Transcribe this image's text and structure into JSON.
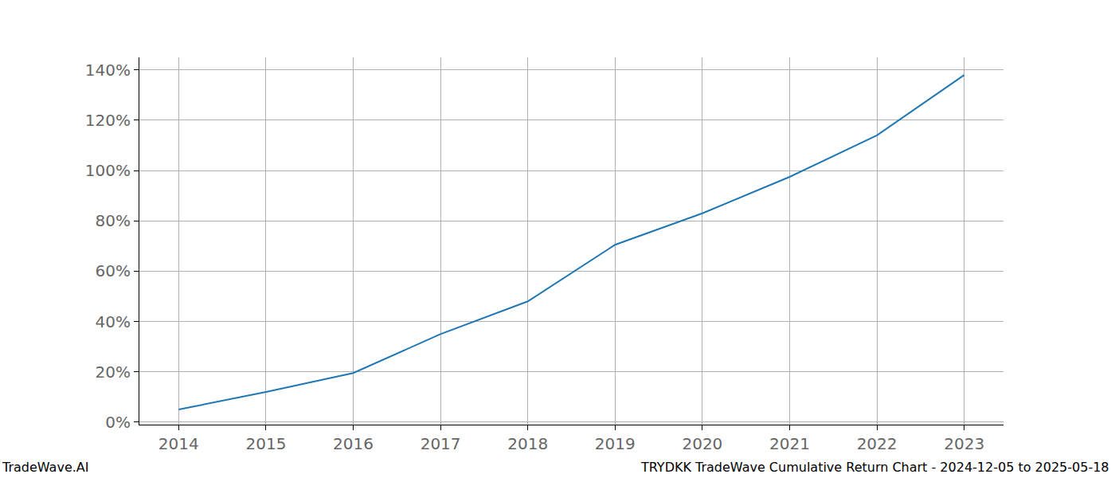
{
  "chart_data": {
    "type": "line",
    "x": [
      2014,
      2015,
      2016,
      2017,
      2018,
      2019,
      2020,
      2021,
      2022,
      2023
    ],
    "values": [
      5,
      12,
      19.5,
      35,
      48,
      70.5,
      83,
      97.5,
      114,
      138
    ],
    "color": "#1f77b4",
    "xlim": [
      2013.55,
      2023.45
    ],
    "xticks": [
      2014,
      2015,
      2016,
      2017,
      2018,
      2019,
      2020,
      2021,
      2022,
      2023
    ],
    "ylim": [
      -1,
      145
    ],
    "yticks": [
      {
        "value": 0,
        "label": "0%"
      },
      {
        "value": 20,
        "label": "20%"
      },
      {
        "value": 40,
        "label": "40%"
      },
      {
        "value": 60,
        "label": "60%"
      },
      {
        "value": 80,
        "label": "80%"
      },
      {
        "value": 100,
        "label": "100%"
      },
      {
        "value": 120,
        "label": "120%"
      },
      {
        "value": 140,
        "label": "140%"
      }
    ],
    "grid": true,
    "annotations": [
      "TradeWave.AI",
      "TRYDKK TradeWave Cumulative Return Chart - 2024-12-05 to 2025-05-18"
    ]
  }
}
